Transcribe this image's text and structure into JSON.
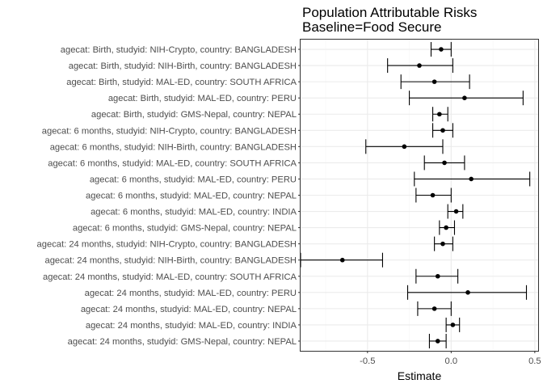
{
  "chart_data": {
    "type": "forest",
    "title_line1": "Population Attributable Risks",
    "title_line2": "Baseline=Food Secure",
    "xlabel": "Estimate",
    "xlim": [
      -0.9,
      0.52
    ],
    "xticks": [
      -0.5,
      0.0,
      0.5
    ],
    "xtick_labels": [
      "-0.5",
      "0.0",
      "0.5"
    ],
    "grid": true,
    "rows": [
      {
        "label": "agecat: Birth, studyid: NIH-Crypto, country: BANGLADESH",
        "estimate": -0.06,
        "lower": -0.12,
        "upper": 0.0
      },
      {
        "label": "agecat: Birth, studyid: NIH-Birth, country: BANGLADESH",
        "estimate": -0.19,
        "lower": -0.38,
        "upper": 0.01
      },
      {
        "label": "agecat: Birth, studyid: MAL-ED, country: SOUTH AFRICA",
        "estimate": -0.1,
        "lower": -0.3,
        "upper": 0.11
      },
      {
        "label": "agecat: Birth, studyid: MAL-ED, country: PERU",
        "estimate": 0.08,
        "lower": -0.25,
        "upper": 0.43
      },
      {
        "label": "agecat: Birth, studyid: GMS-Nepal, country: NEPAL",
        "estimate": -0.07,
        "lower": -0.11,
        "upper": -0.02
      },
      {
        "label": "agecat: 6 months, studyid: NIH-Crypto, country: BANGLADESH",
        "estimate": -0.05,
        "lower": -0.11,
        "upper": 0.01
      },
      {
        "label": "agecat: 6 months, studyid: NIH-Birth, country: BANGLADESH",
        "estimate": -0.28,
        "lower": -0.51,
        "upper": -0.05
      },
      {
        "label": "agecat: 6 months, studyid: MAL-ED, country: SOUTH AFRICA",
        "estimate": -0.04,
        "lower": -0.16,
        "upper": 0.08
      },
      {
        "label": "agecat: 6 months, studyid: MAL-ED, country: PERU",
        "estimate": 0.12,
        "lower": -0.22,
        "upper": 0.47
      },
      {
        "label": "agecat: 6 months, studyid: MAL-ED, country: NEPAL",
        "estimate": -0.11,
        "lower": -0.21,
        "upper": 0.0
      },
      {
        "label": "agecat: 6 months, studyid: MAL-ED, country: INDIA",
        "estimate": 0.03,
        "lower": -0.02,
        "upper": 0.07
      },
      {
        "label": "agecat: 6 months, studyid: GMS-Nepal, country: NEPAL",
        "estimate": -0.03,
        "lower": -0.07,
        "upper": 0.02
      },
      {
        "label": "agecat: 24 months, studyid: NIH-Crypto, country: BANGLADESH",
        "estimate": -0.05,
        "lower": -0.1,
        "upper": 0.01
      },
      {
        "label": "agecat: 24 months, studyid: NIH-Birth, country: BANGLADESH",
        "estimate": -0.65,
        "lower": -0.9,
        "upper": -0.41
      },
      {
        "label": "agecat: 24 months, studyid: MAL-ED, country: SOUTH AFRICA",
        "estimate": -0.08,
        "lower": -0.21,
        "upper": 0.04
      },
      {
        "label": "agecat: 24 months, studyid: MAL-ED, country: PERU",
        "estimate": 0.1,
        "lower": -0.26,
        "upper": 0.45
      },
      {
        "label": "agecat: 24 months, studyid: MAL-ED, country: NEPAL",
        "estimate": -0.1,
        "lower": -0.2,
        "upper": 0.0
      },
      {
        "label": "agecat: 24 months, studyid: MAL-ED, country: INDIA",
        "estimate": 0.01,
        "lower": -0.03,
        "upper": 0.05
      },
      {
        "label": "agecat: 24 months, studyid: GMS-Nepal, country: NEPAL",
        "estimate": -0.08,
        "lower": -0.13,
        "upper": -0.03
      }
    ],
    "colors": {
      "panel_border": "#333333",
      "grid_major": "#ebebeb",
      "grid_minor": "#f5f5f5",
      "point": "#000000",
      "errorbar": "#000000",
      "tick_text": "#4d4d4d"
    }
  }
}
